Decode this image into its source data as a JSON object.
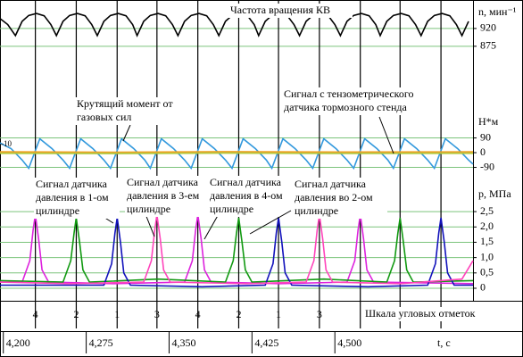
{
  "chart_data": [
    {
      "type": "line",
      "title": "Частота вращения КВ",
      "ylabel": "n, мин⁻¹",
      "xlim": [
        4.197,
        4.625
      ],
      "ylim": [
        834,
        992
      ],
      "yticks": [
        920,
        875
      ],
      "grid": true,
      "grid_color": "#7cc47c",
      "x": [
        4.197,
        4.204,
        4.211,
        4.217,
        4.223,
        4.23,
        4.237,
        4.243,
        4.248,
        4.254,
        4.26,
        4.267,
        4.274,
        4.28,
        4.285,
        4.291,
        4.297,
        4.304,
        4.311,
        4.317,
        4.321,
        4.327,
        4.333,
        4.34,
        4.347,
        4.353,
        4.358,
        4.364,
        4.37,
        4.377,
        4.384,
        4.39,
        4.395,
        4.401,
        4.407,
        4.414,
        4.421,
        4.427,
        4.431,
        4.437,
        4.443,
        4.45,
        4.457,
        4.463,
        4.468,
        4.474,
        4.48,
        4.487,
        4.494,
        4.5,
        4.505,
        4.511,
        4.517,
        4.524,
        4.531,
        4.537,
        4.541,
        4.547,
        4.553,
        4.56,
        4.567,
        4.573,
        4.578,
        4.584,
        4.59,
        4.597,
        4.604,
        4.61,
        4.615,
        4.621
      ],
      "series": [
        {
          "color": "#000000",
          "values": [
            945,
            930,
            902,
            938,
            953,
            958,
            952,
            930,
            902,
            938,
            953,
            958,
            952,
            930,
            902,
            938,
            953,
            958,
            952,
            930,
            902,
            938,
            953,
            958,
            952,
            930,
            902,
            938,
            953,
            958,
            952,
            930,
            902,
            938,
            953,
            958,
            952,
            930,
            902,
            938,
            953,
            958,
            952,
            930,
            902,
            938,
            953,
            958,
            952,
            930,
            902,
            938,
            953,
            958,
            952,
            930,
            902,
            938,
            953,
            958,
            952,
            930,
            902,
            938,
            953,
            958,
            952,
            930,
            902,
            938
          ]
        }
      ]
    },
    {
      "type": "line",
      "ylabel": "Н*м",
      "xlim": [
        4.197,
        4.625
      ],
      "ylim": [
        -158,
        224
      ],
      "yticks": [
        90,
        0,
        -90
      ],
      "grid": true,
      "grid_color": "#7cc47c",
      "series": [
        {
          "color": "#3399dd",
          "x": [
            4.197,
            4.207,
            4.217,
            4.223,
            4.233,
            4.244,
            4.254,
            4.26,
            4.27,
            4.281,
            4.291,
            4.297,
            4.307,
            4.318,
            4.328,
            4.333,
            4.343,
            4.354,
            4.364,
            4.37,
            4.38,
            4.391,
            4.401,
            4.407,
            4.417,
            4.428,
            4.438,
            4.443,
            4.453,
            4.464,
            4.474,
            4.48,
            4.49,
            4.501,
            4.511,
            4.517,
            4.527,
            4.538,
            4.548,
            4.553,
            4.563,
            4.574,
            4.584,
            4.59,
            4.6,
            4.611,
            4.621,
            4.625
          ],
          "values": [
            60,
            25,
            -45,
            -95,
            85,
            25,
            -45,
            -95,
            85,
            25,
            -45,
            -95,
            85,
            25,
            -45,
            -95,
            85,
            25,
            -45,
            -95,
            85,
            25,
            -45,
            -95,
            85,
            25,
            -45,
            -95,
            85,
            25,
            -45,
            -95,
            85,
            25,
            -45,
            -95,
            85,
            25,
            -45,
            -95,
            85,
            25,
            -45,
            -95,
            85,
            25,
            -45,
            -70
          ]
        },
        {
          "color": "#f0a020",
          "x": [
            4.197,
            4.3,
            4.4,
            4.5,
            4.625
          ],
          "values": [
            5,
            3,
            6,
            4,
            5
          ]
        },
        {
          "color": "#b5c83a",
          "x": [
            4.197,
            4.3,
            4.4,
            4.5,
            4.625
          ],
          "values": [
            -4,
            -6,
            -3,
            -5,
            -4
          ]
        }
      ],
      "annotations": [
        {
          "lines": [
            "Крутящий момент от",
            "газовых сил"
          ]
        },
        {
          "lines": [
            "Сигнал с тензометрического",
            "датчика тормозного стенда"
          ]
        },
        {
          "lines": [
            "-10"
          ]
        }
      ]
    },
    {
      "type": "line",
      "ylabel": "р, МПа",
      "xlabel": "t, c",
      "xlim": [
        4.197,
        4.625
      ],
      "ylim": [
        -0.35,
        3.58
      ],
      "xticks": [
        {
          "value": 4.2,
          "label": "4,200"
        },
        {
          "value": 4.275,
          "label": "4,275"
        },
        {
          "value": 4.35,
          "label": "4,350"
        },
        {
          "value": 4.425,
          "label": "4,425"
        },
        {
          "value": 4.5,
          "label": "4,500"
        }
      ],
      "yticks": [
        {
          "value": 2.5,
          "label": "2,5"
        },
        {
          "value": 2,
          "label": "2,0"
        },
        {
          "value": 1.5,
          "label": "1,5"
        },
        {
          "value": 1,
          "label": "1,0"
        },
        {
          "value": 0.5,
          "label": "0,5"
        },
        0
      ],
      "grid": true,
      "grid_color": "#7cc47c",
      "angle_marks": {
        "label": "Шкала угловых отметок",
        "x": [
          4.229,
          4.266,
          4.303,
          4.339,
          4.376,
          4.413,
          4.449,
          4.486,
          4.523,
          4.559,
          4.596
        ],
        "labels": [
          "4",
          "2",
          "1",
          "3",
          "4",
          "2",
          "1",
          "3",
          null,
          null,
          null
        ]
      },
      "series": [
        {
          "color": "#dd22dd",
          "x": [
            4.197,
            4.217,
            4.224,
            4.227,
            4.229,
            4.232,
            4.235,
            4.241,
            4.3,
            4.364,
            4.371,
            4.374,
            4.376,
            4.379,
            4.382,
            4.388,
            4.45,
            4.511,
            4.518,
            4.521,
            4.523,
            4.526,
            4.529,
            4.535,
            4.625
          ],
          "values": [
            0.2,
            0.2,
            0.9,
            1.9,
            2.4,
            1.6,
            0.6,
            0.2,
            0.15,
            0.2,
            0.9,
            1.9,
            2.4,
            1.6,
            0.6,
            0.2,
            0.15,
            0.2,
            0.9,
            1.9,
            2.4,
            1.6,
            0.6,
            0.2,
            0.15
          ]
        },
        {
          "color": "#119911",
          "x": [
            4.197,
            4.254,
            4.261,
            4.264,
            4.266,
            4.269,
            4.272,
            4.278,
            4.34,
            4.401,
            4.408,
            4.411,
            4.413,
            4.416,
            4.419,
            4.425,
            4.49,
            4.547,
            4.554,
            4.557,
            4.559,
            4.562,
            4.565,
            4.571,
            4.625
          ],
          "values": [
            0.25,
            0.2,
            0.9,
            1.8,
            2.3,
            1.5,
            0.6,
            0.2,
            0.3,
            0.2,
            0.9,
            1.8,
            2.3,
            1.5,
            0.6,
            0.2,
            0.3,
            0.2,
            0.9,
            1.8,
            2.3,
            1.5,
            0.6,
            0.2,
            0.25
          ]
        },
        {
          "color": "#1111bb",
          "x": [
            4.197,
            4.291,
            4.298,
            4.301,
            4.303,
            4.306,
            4.309,
            4.315,
            4.38,
            4.437,
            4.444,
            4.447,
            4.449,
            4.452,
            4.455,
            4.461,
            4.53,
            4.584,
            4.591,
            4.594,
            4.596,
            4.599,
            4.602,
            4.608,
            4.625
          ],
          "values": [
            0.1,
            0.1,
            0.8,
            1.8,
            2.3,
            1.5,
            0.5,
            0.1,
            0.05,
            0.1,
            0.8,
            1.8,
            2.3,
            1.5,
            0.5,
            0.1,
            0.05,
            0.1,
            0.8,
            1.8,
            2.3,
            1.5,
            0.5,
            0.1,
            0.1
          ]
        },
        {
          "color": "#ff44bb",
          "x": [
            4.197,
            4.26,
            4.327,
            4.334,
            4.337,
            4.339,
            4.342,
            4.345,
            4.351,
            4.42,
            4.474,
            4.481,
            4.484,
            4.486,
            4.489,
            4.492,
            4.498,
            4.56,
            4.615,
            4.625
          ],
          "values": [
            0.2,
            0.15,
            0.2,
            0.9,
            1.9,
            2.4,
            1.6,
            0.6,
            0.2,
            0.15,
            0.2,
            0.9,
            1.9,
            2.4,
            1.6,
            0.6,
            0.2,
            0.15,
            0.3,
            0.9
          ]
        }
      ],
      "annotations": [
        {
          "lines": [
            "Сигнал датчика",
            "давления в 1-ом",
            "цилиндре"
          ]
        },
        {
          "lines": [
            "Сигнал датчика",
            "давления в 3-ем",
            "цилиндре"
          ]
        },
        {
          "lines": [
            "Сигнал датчика",
            "давления в 4-ом",
            "цилиндре"
          ]
        },
        {
          "lines": [
            "Сигнал датчика",
            "давления во 2-ом",
            "цилиндре"
          ]
        }
      ]
    }
  ]
}
